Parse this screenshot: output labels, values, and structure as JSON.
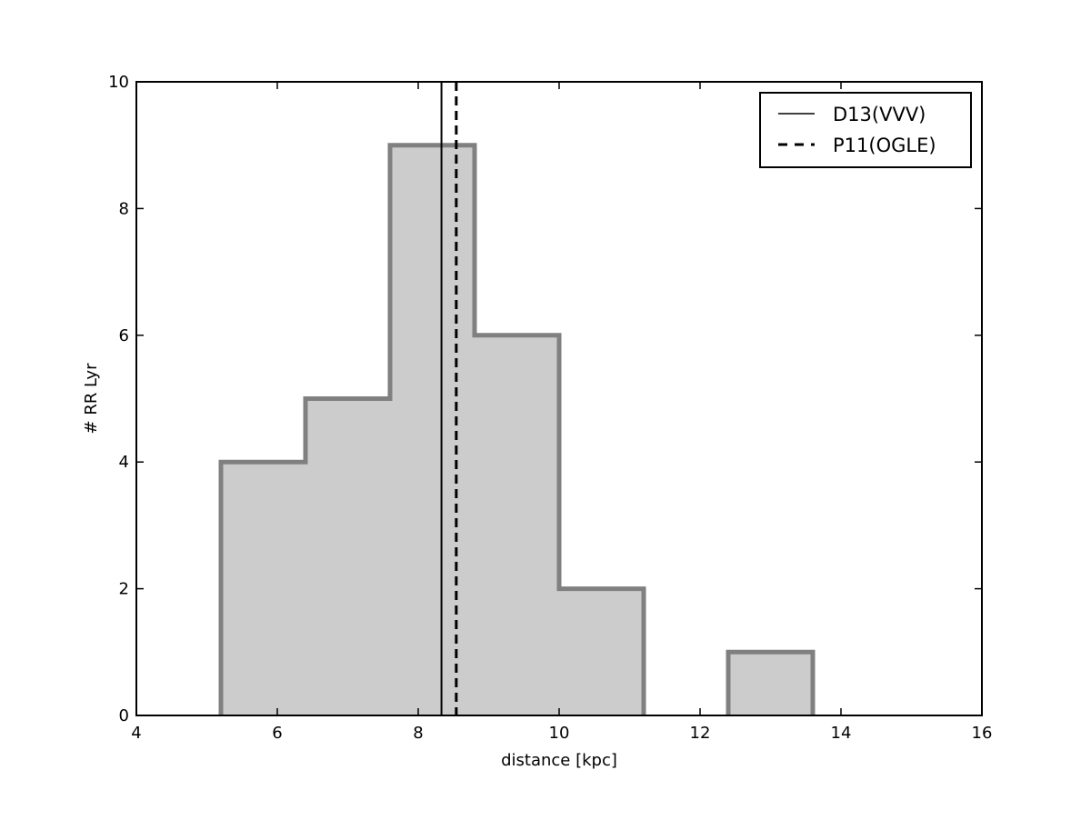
{
  "chart_data": {
    "type": "histogram",
    "title": "",
    "xlabel": "distance [kpc]",
    "ylabel": "# RR Lyr",
    "xlim": [
      4,
      16
    ],
    "ylim": [
      0,
      10
    ],
    "xticks": [
      "4",
      "6",
      "8",
      "10",
      "12",
      "14",
      "16"
    ],
    "yticks": [
      "0",
      "2",
      "4",
      "6",
      "8",
      "10"
    ],
    "grid": false,
    "bins": [
      {
        "x0": 5.2,
        "x1": 6.4,
        "count": 4
      },
      {
        "x0": 6.4,
        "x1": 7.6,
        "count": 5
      },
      {
        "x0": 7.6,
        "x1": 8.8,
        "count": 9
      },
      {
        "x0": 8.8,
        "x1": 10.0,
        "count": 6
      },
      {
        "x0": 10.0,
        "x1": 11.2,
        "count": 2
      },
      {
        "x0": 11.2,
        "x1": 12.4,
        "count": 0
      },
      {
        "x0": 12.4,
        "x1": 13.6,
        "count": 1
      }
    ],
    "fill_color": "#cccccc",
    "edge_color": "#808080",
    "reference_lines": [
      {
        "name": "D13(VVV)",
        "x": 8.33,
        "style": "solid",
        "color": "#000000"
      },
      {
        "name": "P11(OGLE)",
        "x": 8.54,
        "style": "dashed",
        "color": "#000000"
      }
    ],
    "legend_position": "top-right"
  }
}
